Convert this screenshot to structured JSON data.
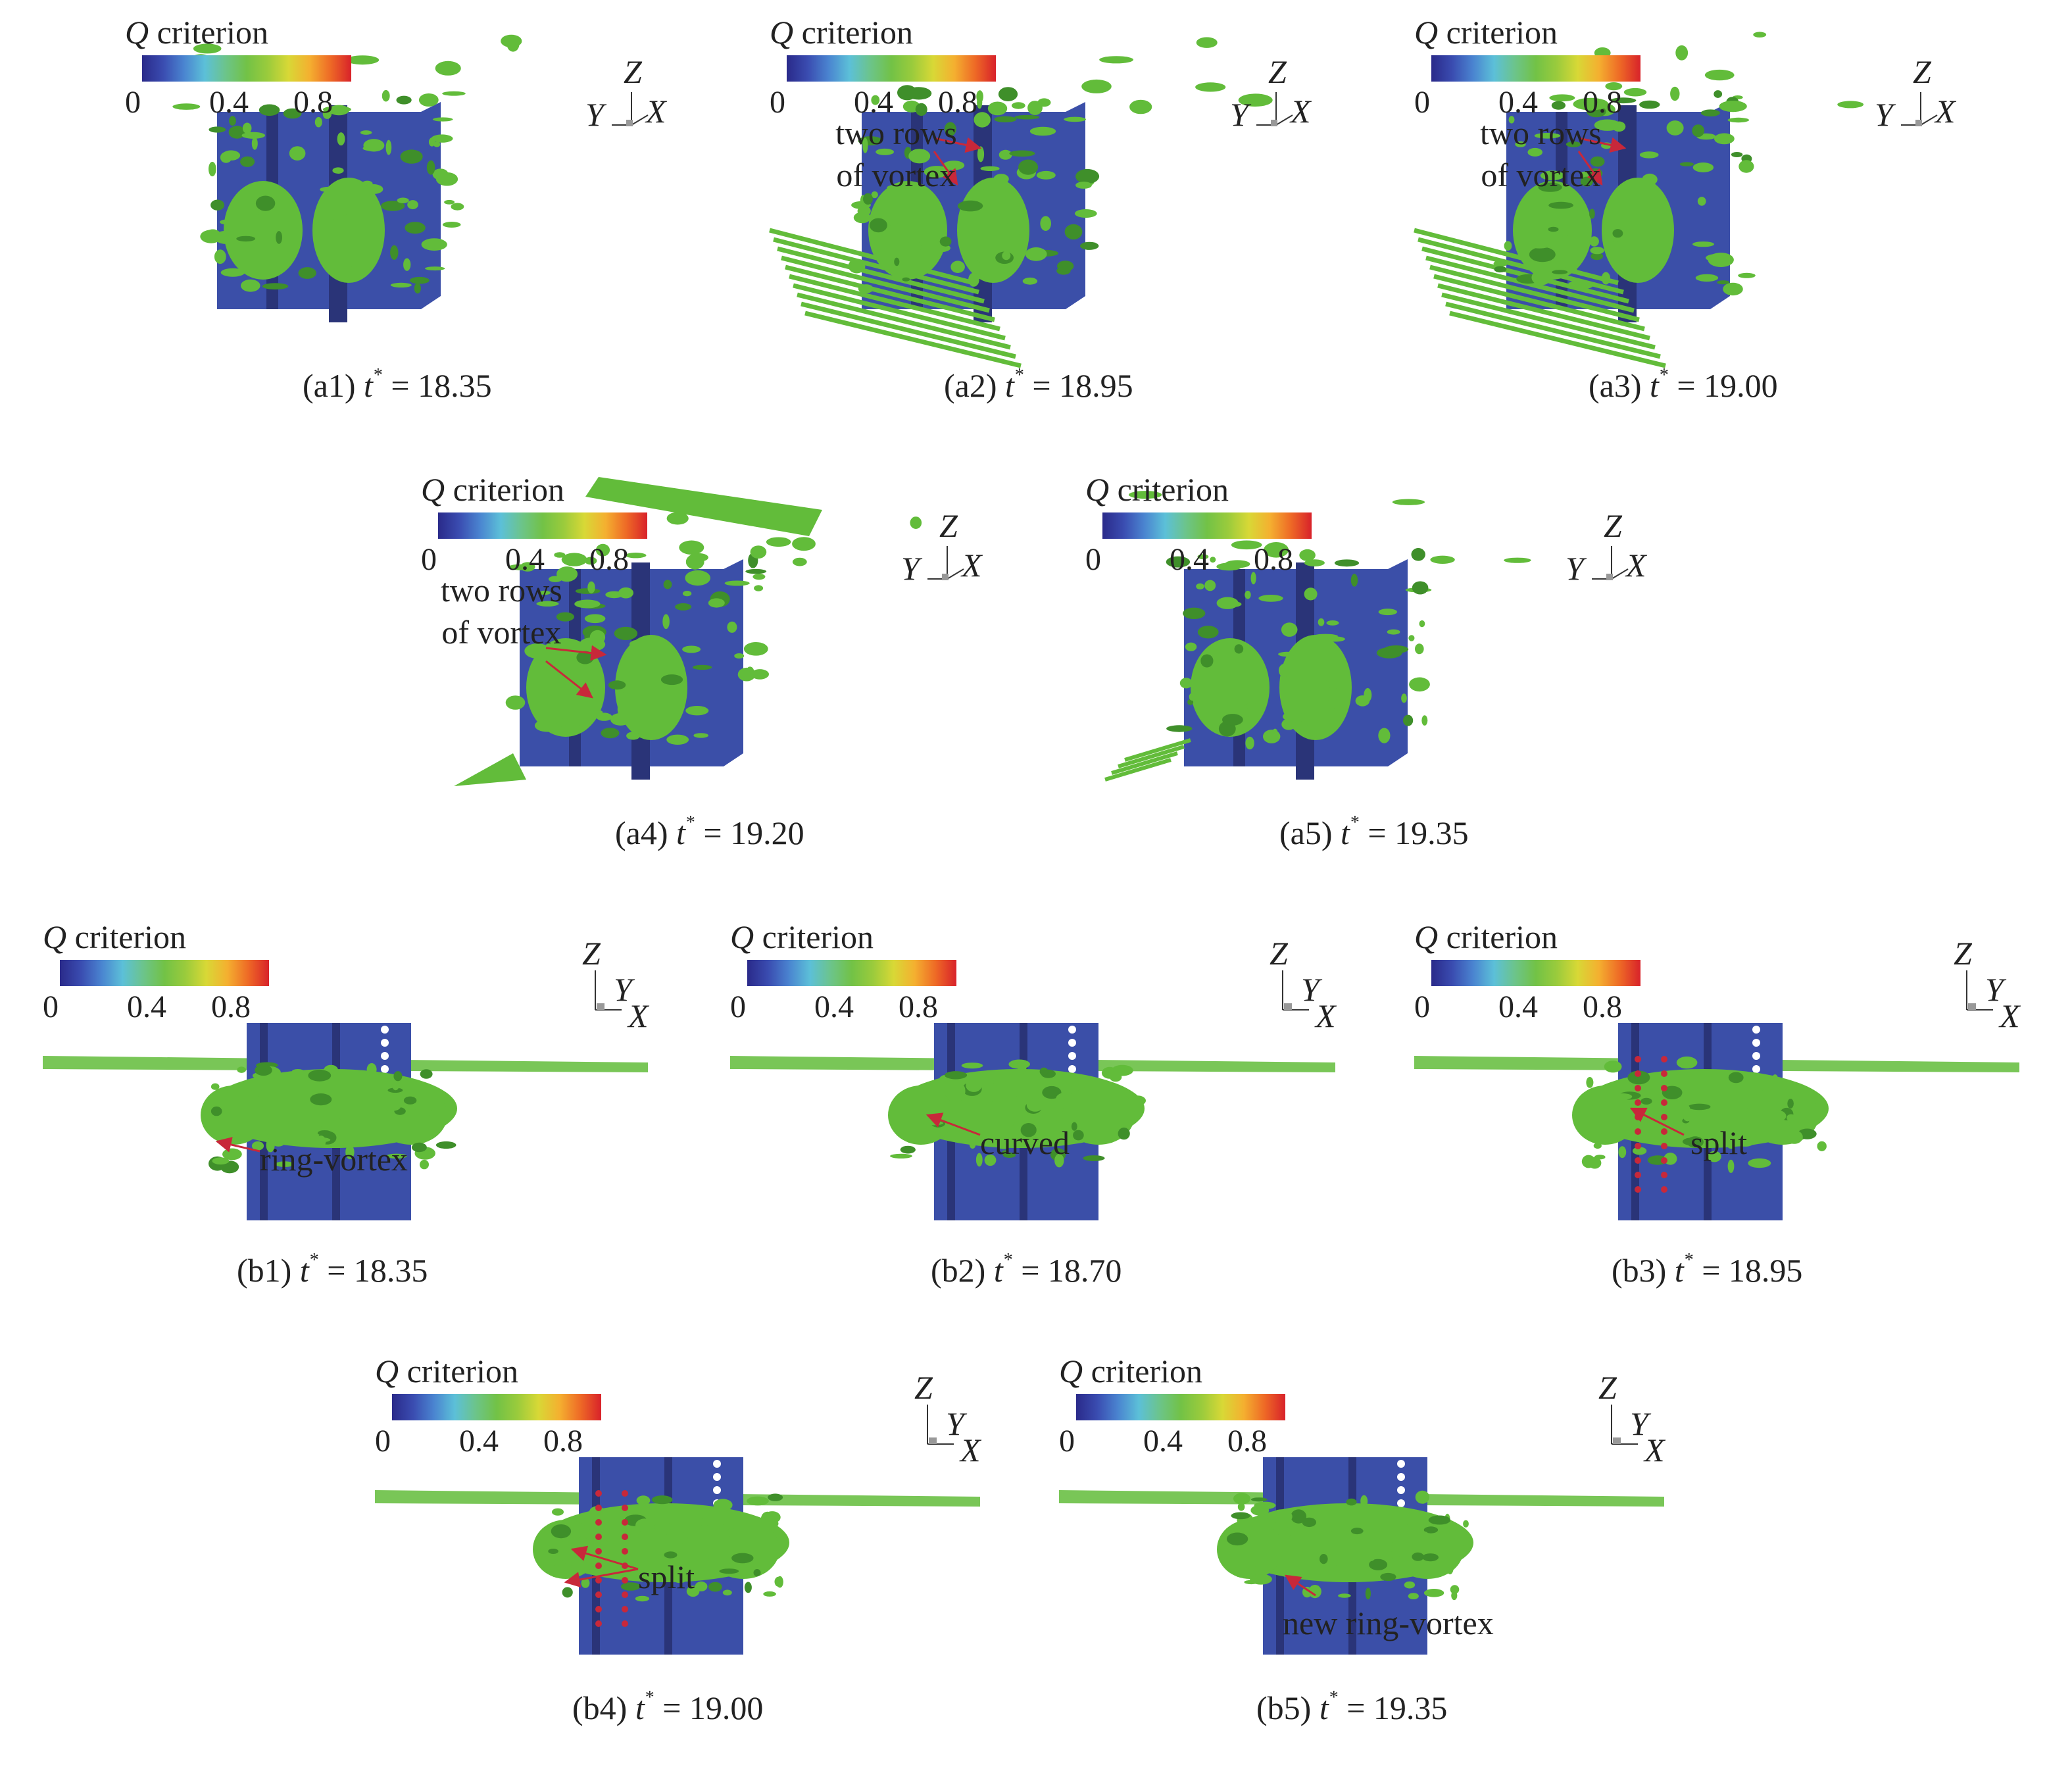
{
  "legend": {
    "title_var": "Q",
    "title_word": "criterion",
    "ticks": [
      "0",
      "0.4",
      "0.8"
    ],
    "colormap": [
      "#2a2a8a",
      "#3a4cb0",
      "#4a84d0",
      "#5cc0d8",
      "#6cc48a",
      "#72c246",
      "#9acb3c",
      "#d8d836",
      "#f4b030",
      "#ee6a26",
      "#d8222a"
    ]
  },
  "axes_labels": {
    "z": "Z",
    "y": "Y",
    "x": "X"
  },
  "panels": [
    {
      "id": "a1",
      "label": "(a1)",
      "t_var": "t",
      "t_sup": "*",
      "eq": "=",
      "t_value": "18.35",
      "annotations": []
    },
    {
      "id": "a2",
      "label": "(a2)",
      "t_var": "t",
      "t_sup": "*",
      "eq": "=",
      "t_value": "18.95",
      "annotations": [
        {
          "lines": [
            "two rows",
            "of vortex"
          ]
        }
      ]
    },
    {
      "id": "a3",
      "label": "(a3)",
      "t_var": "t",
      "t_sup": "*",
      "eq": "=",
      "t_value": "19.00",
      "annotations": [
        {
          "lines": [
            "two rows",
            "of vortex"
          ]
        }
      ]
    },
    {
      "id": "a4",
      "label": "(a4)",
      "t_var": "t",
      "t_sup": "*",
      "eq": "=",
      "t_value": "19.20",
      "annotations": [
        {
          "lines": [
            "two rows",
            "of vortex"
          ]
        }
      ]
    },
    {
      "id": "a5",
      "label": "(a5)",
      "t_var": "t",
      "t_sup": "*",
      "eq": "=",
      "t_value": "19.35",
      "annotations": []
    },
    {
      "id": "b1",
      "label": "(b1)",
      "t_var": "t",
      "t_sup": "*",
      "eq": "=",
      "t_value": "18.35",
      "annotations": [
        {
          "lines": [
            "ring-vortex"
          ]
        }
      ]
    },
    {
      "id": "b2",
      "label": "(b2)",
      "t_var": "t",
      "t_sup": "*",
      "eq": "=",
      "t_value": "18.70",
      "annotations": [
        {
          "lines": [
            "curved"
          ]
        }
      ]
    },
    {
      "id": "b3",
      "label": "(b3)",
      "t_var": "t",
      "t_sup": "*",
      "eq": "=",
      "t_value": "18.95",
      "annotations": [
        {
          "lines": [
            "split"
          ]
        }
      ]
    },
    {
      "id": "b4",
      "label": "(b4)",
      "t_var": "t",
      "t_sup": "*",
      "eq": "=",
      "t_value": "19.00",
      "annotations": [
        {
          "lines": [
            "split"
          ]
        }
      ]
    },
    {
      "id": "b5",
      "label": "(b5)",
      "t_var": "t",
      "t_sup": "*",
      "eq": "=",
      "t_value": "19.35",
      "annotations": [
        {
          "lines": [
            "new ring-vortex"
          ]
        }
      ]
    }
  ],
  "colors": {
    "structure": "#3b4fa8",
    "structure_dark": "#2a3478",
    "vortex": "#62bc3a",
    "vortex_dark": "#3f8f2a",
    "arrow": "#c8283a",
    "text": "#222222"
  }
}
